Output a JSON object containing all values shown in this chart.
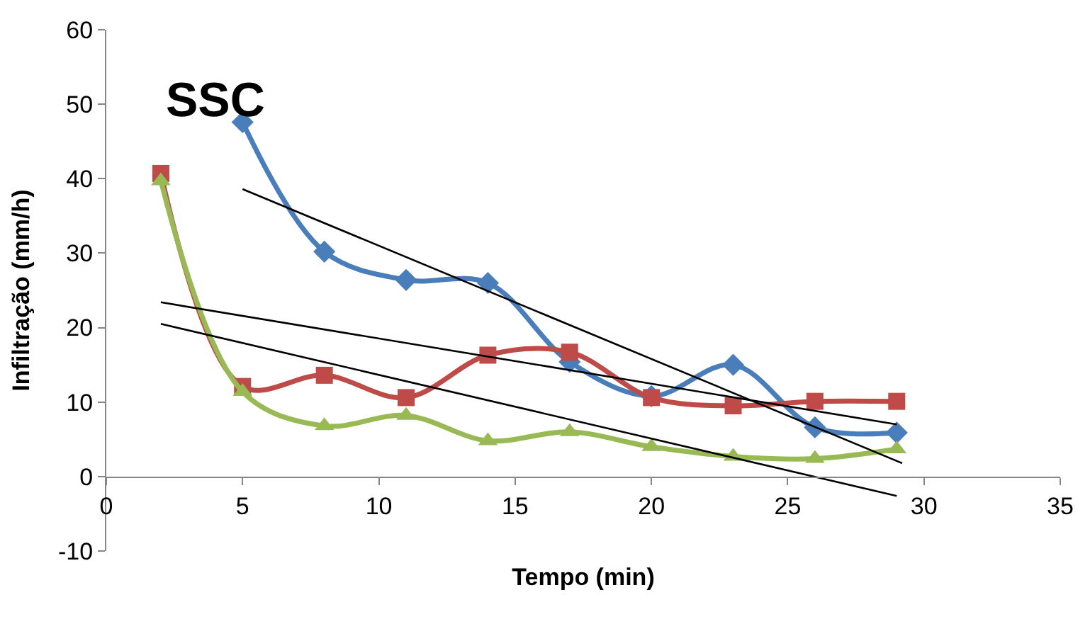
{
  "chart_data": {
    "type": "line",
    "xlabel": "Tempo (min)",
    "ylabel": "Infiltração (mm/h)",
    "annotations": [
      "SSC"
    ],
    "xlim": [
      0,
      35
    ],
    "xticks": [
      0,
      5,
      10,
      15,
      20,
      25,
      30,
      35
    ],
    "ylim": [
      -10,
      60
    ],
    "yticks": [
      -10,
      0,
      10,
      20,
      30,
      40,
      50,
      60
    ],
    "series": [
      {
        "color": "#4a7ebb",
        "marker": "diamond",
        "x": [
          5,
          8,
          11,
          14,
          17,
          20,
          23,
          26,
          29
        ],
        "values": [
          47.6,
          30.2,
          26.4,
          26,
          15.4,
          10.8,
          15,
          6.6,
          5.9
        ]
      },
      {
        "color": "#be4b48",
        "marker": "square",
        "x": [
          2,
          5,
          8,
          11,
          14,
          17,
          20,
          23,
          26,
          29
        ],
        "values": [
          40.7,
          12.1,
          13.6,
          10.6,
          16.3,
          16.7,
          10.6,
          9.5,
          10.1,
          10.1
        ]
      },
      {
        "color": "#98b954",
        "marker": "triangle",
        "x": [
          2,
          5,
          8,
          11,
          14,
          17,
          20,
          23,
          26,
          29
        ],
        "values": [
          39.7,
          11.4,
          6.8,
          8.2,
          4.8,
          6,
          4,
          2.7,
          2.4,
          3.7
        ]
      },
      {
        "color": "#000000",
        "marker": "none",
        "x": [
          5,
          29.2
        ],
        "values": [
          38.6,
          1.8
        ]
      },
      {
        "color": "#000000",
        "marker": "none",
        "x": [
          2,
          29
        ],
        "values": [
          23.4,
          7
        ]
      },
      {
        "color": "#000000",
        "marker": "none",
        "x": [
          2,
          29
        ],
        "values": [
          20.5,
          -2.6
        ]
      }
    ]
  }
}
